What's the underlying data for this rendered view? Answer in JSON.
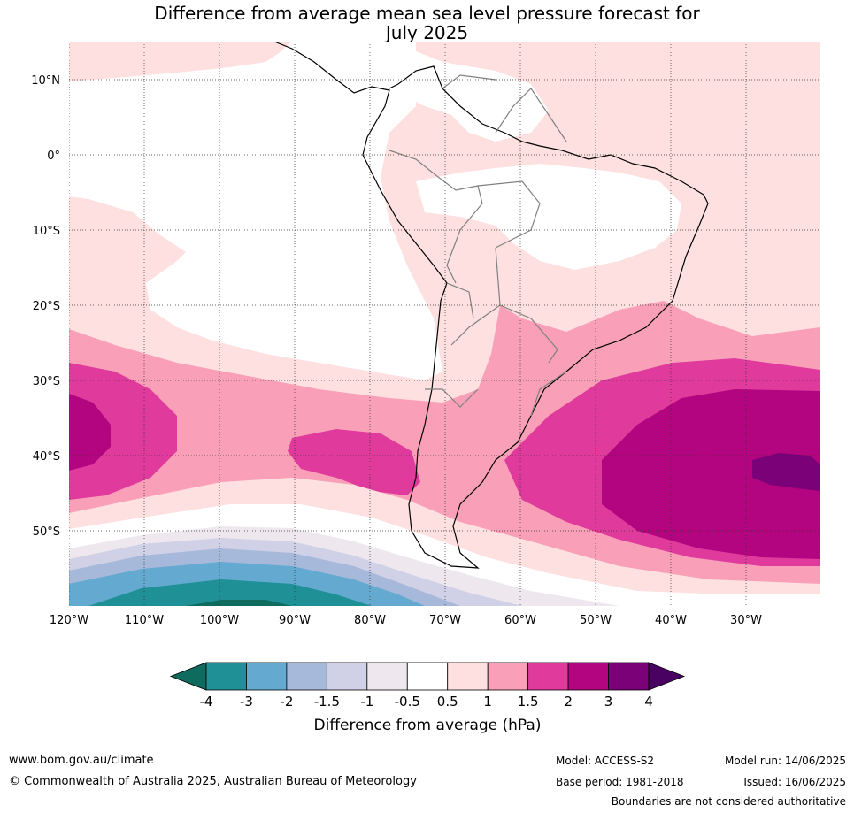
{
  "title_line1": "Difference from average mean sea level pressure forecast for",
  "title_line2": "July 2025",
  "lat_labels": [
    "10°N",
    "0°",
    "10°S",
    "20°S",
    "30°S",
    "40°S",
    "50°S"
  ],
  "lon_labels": [
    "120°W",
    "110°W",
    "100°W",
    "90°W",
    "80°W",
    "70°W",
    "60°W",
    "50°W",
    "40°W",
    "30°W"
  ],
  "colorbar": {
    "tick_labels": [
      "-4",
      "-3",
      "-2",
      "-1.5",
      "-1",
      "-0.5",
      "0.5",
      "1",
      "1.5",
      "2",
      "3",
      "4"
    ],
    "label": "Difference from average (hPa)",
    "colors": [
      "#0e6b5e",
      "#1e9096",
      "#64a9d0",
      "#a7b9da",
      "#d0d0e6",
      "#eee8ee",
      "#ffffff",
      "#fde0df",
      "#f9a0b8",
      "#df3a9c",
      "#b3057f",
      "#7a0177",
      "#4a0262"
    ]
  },
  "footer": {
    "website": "www.bom.gov.au/climate",
    "copyright": "© Commonwealth of Australia 2025, Australian Bureau of Meteorology",
    "model": "Model: ACCESS-S2",
    "base_period": "Base period: 1981-2018",
    "model_run": "Model run: 14/06/2025",
    "issued": "Issued: 16/06/2025",
    "disclaimer": "Boundaries are not considered authoritative"
  }
}
